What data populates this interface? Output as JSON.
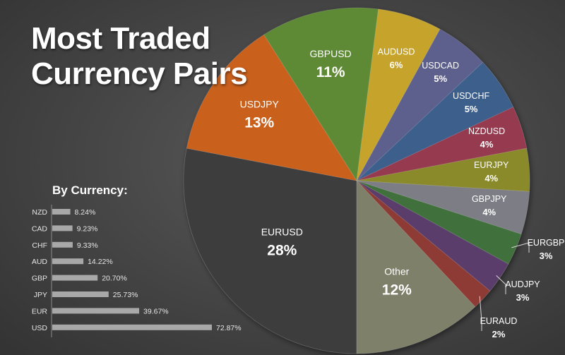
{
  "title_line1": "Most Traded",
  "title_line2": "Currency Pairs",
  "colors": {
    "EURUSD": "#3c3c3c",
    "USDJPY": "#c9611f",
    "GBPUSD": "#5e8a36",
    "AUDUSD": "#c6a32a",
    "USDCAD": "#5d5f8d",
    "USDCHF": "#3d5f8c",
    "NZDUSD": "#963a4f",
    "EURJPY": "#8b8a2a",
    "GBPJPY": "#7d7d85",
    "EURGBP": "#3f6f3b",
    "AUDJPY": "#5a3e6b",
    "EURAUD": "#8e3b34",
    "Other": "#7e8069",
    "bar": "#a8a8a8"
  },
  "chart_data": [
    {
      "type": "pie",
      "title": "Most Traded Currency Pairs",
      "slices": [
        {
          "label": "EURUSD",
          "value": 28,
          "display": "28%"
        },
        {
          "label": "USDJPY",
          "value": 13,
          "display": "13%"
        },
        {
          "label": "GBPUSD",
          "value": 11,
          "display": "11%"
        },
        {
          "label": "AUDUSD",
          "value": 6,
          "display": "6%"
        },
        {
          "label": "USDCAD",
          "value": 5,
          "display": "5%"
        },
        {
          "label": "USDCHF",
          "value": 5,
          "display": "5%"
        },
        {
          "label": "NZDUSD",
          "value": 4,
          "display": "4%"
        },
        {
          "label": "EURJPY",
          "value": 4,
          "display": "4%"
        },
        {
          "label": "GBPJPY",
          "value": 4,
          "display": "4%"
        },
        {
          "label": "EURGBP",
          "value": 3,
          "display": "3%"
        },
        {
          "label": "AUDJPY",
          "value": 3,
          "display": "3%"
        },
        {
          "label": "EURAUD",
          "value": 2,
          "display": "2%"
        },
        {
          "label": "Other",
          "value": 12,
          "display": "12%"
        }
      ]
    },
    {
      "type": "bar",
      "title": "By Currency:",
      "categories": [
        "NZD",
        "CAD",
        "CHF",
        "AUD",
        "GBP",
        "JPY",
        "EUR",
        "USD"
      ],
      "values": [
        8.24,
        9.23,
        9.33,
        14.22,
        20.7,
        25.73,
        39.67,
        72.87
      ],
      "value_labels": [
        "8.24%",
        "9.23%",
        "9.33%",
        "14.22%",
        "20.70%",
        "25.73%",
        "39.67%",
        "72.87%"
      ]
    }
  ]
}
